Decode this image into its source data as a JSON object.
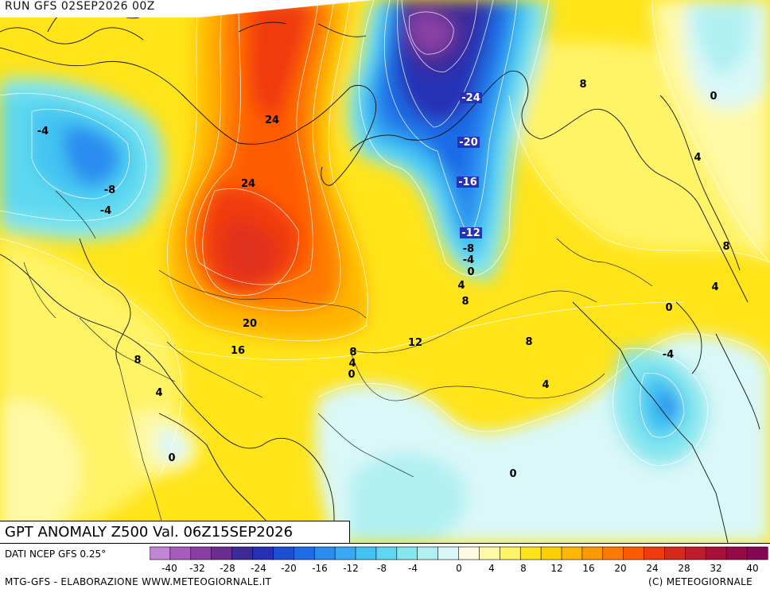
{
  "header": {
    "run": "RUN GFS 02SEP2026 00Z"
  },
  "title": {
    "text": "GPT ANOMALY Z500 Val. 06Z15SEP2026"
  },
  "footer": {
    "source": "DATI NCEP GFS 0.25°",
    "credit_left": "MTG-GFS - ELABORAZIONE WWW.METEOGIORNALE.IT",
    "credit_right": "(C) METEOGIORNALE"
  },
  "legend": {
    "ticks": [
      "-40",
      "-32",
      "-28",
      "-24",
      "-20",
      "-16",
      "-12",
      "-8",
      "-4",
      "0",
      "4",
      "8",
      "12",
      "16",
      "20",
      "24",
      "28",
      "32",
      "40"
    ],
    "colors": [
      "#c284d4",
      "#a65dbb",
      "#8a3fa3",
      "#6b2d8f",
      "#3e2a96",
      "#2631b5",
      "#1d4fd4",
      "#1e6be6",
      "#2b8cef",
      "#36a9f2",
      "#42c4f2",
      "#5dd8f0",
      "#84e6ef",
      "#b0f0f2",
      "#daf8f7",
      "#fffbe0",
      "#fff9a6",
      "#fff366",
      "#ffe419",
      "#ffd000",
      "#ffb600",
      "#ff9900",
      "#ff7a00",
      "#ff5c00",
      "#f03a10",
      "#d42a1c",
      "#bd1c2c",
      "#a8103a",
      "#960a48",
      "#850654"
    ]
  },
  "map_labels": [
    {
      "text": "24",
      "kind": "pos"
    },
    {
      "text": "24",
      "kind": "pos"
    },
    {
      "text": "20",
      "kind": "pos"
    },
    {
      "text": "16",
      "kind": "pos"
    },
    {
      "text": "12",
      "kind": "pos"
    },
    {
      "text": "8",
      "kind": "pos"
    },
    {
      "text": "8",
      "kind": "pos"
    },
    {
      "text": "8",
      "kind": "pos"
    },
    {
      "text": "8",
      "kind": "pos"
    },
    {
      "text": "8",
      "kind": "pos"
    },
    {
      "text": "8",
      "kind": "pos"
    },
    {
      "text": "4",
      "kind": "pos"
    },
    {
      "text": "4",
      "kind": "pos"
    },
    {
      "text": "4",
      "kind": "pos"
    },
    {
      "text": "4",
      "kind": "pos"
    },
    {
      "text": "4",
      "kind": "pos"
    },
    {
      "text": "4",
      "kind": "pos"
    },
    {
      "text": "0",
      "kind": "pos"
    },
    {
      "text": "0",
      "kind": "pos"
    },
    {
      "text": "0",
      "kind": "pos"
    },
    {
      "text": "0",
      "kind": "pos"
    },
    {
      "text": "0",
      "kind": "pos"
    },
    {
      "text": "0",
      "kind": "pos"
    },
    {
      "text": "-4",
      "kind": "neg"
    },
    {
      "text": "-4",
      "kind": "neg"
    },
    {
      "text": "-8",
      "kind": "neg"
    },
    {
      "text": "-4",
      "kind": "neg"
    },
    {
      "text": "-24",
      "kind": "neg"
    },
    {
      "text": "-20",
      "kind": "neg"
    },
    {
      "text": "-16",
      "kind": "neg"
    },
    {
      "text": "-12",
      "kind": "neg"
    },
    {
      "text": "-8",
      "kind": "neg"
    },
    {
      "text": "-4",
      "kind": "neg"
    },
    {
      "text": "-4",
      "kind": "neg"
    }
  ]
}
